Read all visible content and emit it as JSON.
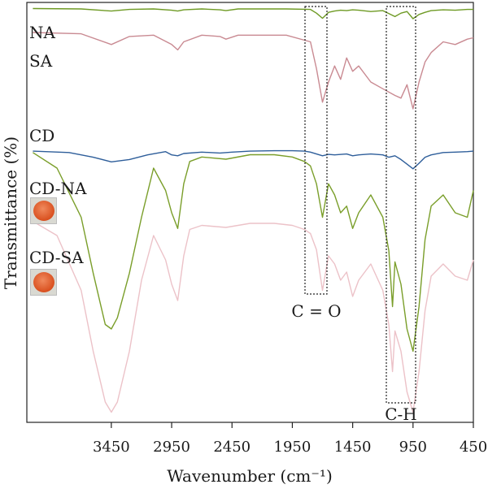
{
  "chart_data": {
    "type": "line",
    "title": "",
    "xlabel": "Wavenumber (cm⁻¹)",
    "ylabel": "Transmittance (%)",
    "xlim": [
      4150,
      450
    ],
    "x_reversed": true,
    "xticks": [
      3450,
      2950,
      2450,
      1950,
      1450,
      950,
      450
    ],
    "grid": false,
    "legend": "none",
    "series": [
      {
        "name": "NA",
        "color": "#6e9a24",
        "x": [
          4100,
          3700,
          3450,
          3300,
          3100,
          2950,
          2900,
          2850,
          2700,
          2550,
          2500,
          2400,
          2200,
          2000,
          1800,
          1750,
          1700,
          1650,
          1600,
          1550,
          1500,
          1450,
          1400,
          1300,
          1200,
          1100,
          1050,
          1000,
          950,
          900,
          850,
          800,
          700,
          600,
          500,
          450
        ],
        "y": [
          99,
          98,
          93,
          97,
          98,
          95,
          93,
          96,
          98,
          96,
          94,
          98,
          98,
          98,
          97,
          88,
          76,
          90,
          93,
          95,
          94,
          96,
          95,
          92,
          94,
          80,
          88,
          92,
          75,
          85,
          90,
          94,
          96,
          95,
          97,
          97
        ]
      },
      {
        "name": "SA",
        "color": "#c98a92",
        "x": [
          4100,
          3700,
          3450,
          3300,
          3100,
          2950,
          2900,
          2850,
          2700,
          2550,
          2500,
          2400,
          2200,
          2000,
          1800,
          1750,
          1700,
          1650,
          1600,
          1550,
          1500,
          1450,
          1400,
          1300,
          1200,
          1100,
          1050,
          1000,
          950,
          900,
          850,
          800,
          700,
          600,
          500,
          450
        ],
        "y": [
          97,
          96,
          88,
          94,
          95,
          88,
          84,
          90,
          95,
          94,
          92,
          95,
          95,
          95,
          90,
          70,
          45,
          60,
          72,
          62,
          78,
          68,
          72,
          60,
          55,
          50,
          48,
          58,
          40,
          60,
          75,
          82,
          90,
          88,
          92,
          93
        ]
      },
      {
        "name": "CD",
        "color": "#2e5e9a",
        "x": [
          4100,
          3800,
          3600,
          3450,
          3300,
          3150,
          3000,
          2950,
          2900,
          2850,
          2700,
          2550,
          2450,
          2300,
          2100,
          1950,
          1850,
          1800,
          1750,
          1700,
          1650,
          1600,
          1500,
          1450,
          1400,
          1300,
          1200,
          1150,
          1100,
          1050,
          1000,
          950,
          900,
          850,
          800,
          700,
          600,
          500,
          450
        ],
        "y": [
          98,
          95,
          85,
          75,
          80,
          90,
          97,
          90,
          88,
          93,
          96,
          94,
          96,
          98,
          99,
          99,
          98,
          96,
          92,
          88,
          91,
          90,
          92,
          88,
          90,
          92,
          90,
          85,
          88,
          80,
          70,
          60,
          72,
          85,
          90,
          95,
          96,
          97,
          98
        ]
      },
      {
        "name": "CD-NA",
        "color": "#7a9e2a",
        "x": [
          4100,
          3900,
          3700,
          3600,
          3500,
          3450,
          3400,
          3300,
          3200,
          3100,
          3000,
          2950,
          2900,
          2850,
          2800,
          2700,
          2500,
          2300,
          2100,
          1950,
          1850,
          1800,
          1750,
          1700,
          1650,
          1600,
          1550,
          1500,
          1450,
          1400,
          1300,
          1200,
          1150,
          1120,
          1100,
          1050,
          1000,
          950,
          900,
          850,
          800,
          700,
          600,
          500,
          450
        ],
        "y": [
          99,
          92,
          70,
          45,
          22,
          20,
          25,
          45,
          70,
          92,
          82,
          72,
          65,
          85,
          95,
          97,
          96,
          98,
          98,
          97,
          95,
          93,
          85,
          70,
          85,
          80,
          72,
          75,
          65,
          72,
          80,
          70,
          55,
          30,
          50,
          40,
          20,
          10,
          30,
          60,
          75,
          80,
          72,
          70,
          82
        ]
      },
      {
        "name": "CD-SA",
        "color": "#ecc2c8",
        "x": [
          4100,
          3900,
          3700,
          3600,
          3500,
          3450,
          3400,
          3300,
          3200,
          3100,
          3000,
          2950,
          2900,
          2850,
          2800,
          2700,
          2500,
          2300,
          2100,
          1950,
          1850,
          1800,
          1750,
          1700,
          1650,
          1600,
          1550,
          1500,
          1450,
          1400,
          1300,
          1200,
          1150,
          1120,
          1100,
          1050,
          1000,
          950,
          900,
          850,
          800,
          700,
          600,
          500,
          450
        ],
        "y": [
          99,
          92,
          65,
          35,
          10,
          5,
          10,
          35,
          70,
          92,
          80,
          68,
          60,
          82,
          95,
          97,
          96,
          98,
          98,
          97,
          95,
          93,
          85,
          65,
          82,
          78,
          70,
          74,
          62,
          70,
          78,
          65,
          48,
          25,
          45,
          35,
          15,
          5,
          25,
          55,
          72,
          78,
          72,
          70,
          80
        ]
      }
    ],
    "series_labels": [
      "NA",
      "SA",
      "CD",
      "CD-NA",
      "CD-SA"
    ],
    "annotations": [
      "C = O",
      "C-H"
    ]
  }
}
